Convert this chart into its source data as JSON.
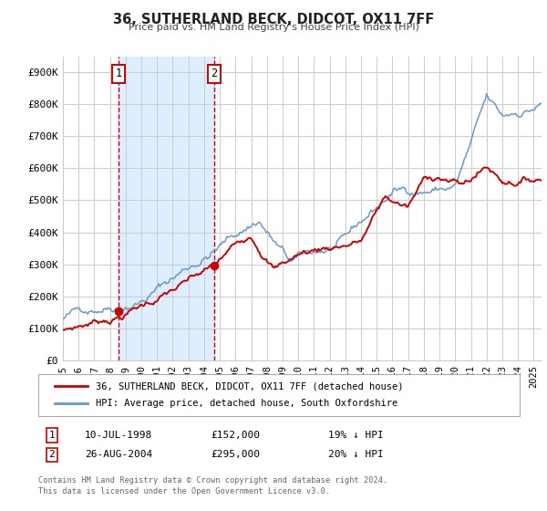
{
  "title": "36, SUTHERLAND BECK, DIDCOT, OX11 7FF",
  "subtitle": "Price paid vs. HM Land Registry's House Price Index (HPI)",
  "xlim": [
    1995.0,
    2025.5
  ],
  "ylim": [
    0,
    950000
  ],
  "yticks": [
    0,
    100000,
    200000,
    300000,
    400000,
    500000,
    600000,
    700000,
    800000,
    900000
  ],
  "ytick_labels": [
    "£0",
    "£100K",
    "£200K",
    "£300K",
    "£400K",
    "£500K",
    "£600K",
    "£700K",
    "£800K",
    "£900K"
  ],
  "xtick_years": [
    1995,
    1996,
    1997,
    1998,
    1999,
    2000,
    2001,
    2002,
    2003,
    2004,
    2005,
    2006,
    2007,
    2008,
    2009,
    2010,
    2011,
    2012,
    2013,
    2014,
    2015,
    2016,
    2017,
    2018,
    2019,
    2020,
    2021,
    2022,
    2023,
    2024,
    2025
  ],
  "red_color": "#cc0000",
  "blue_color": "#6699cc",
  "shade_color": "#ddeeff",
  "grid_color": "#cccccc",
  "purchase1_x": 1998.54,
  "purchase1_y": 152000,
  "purchase2_x": 2004.65,
  "purchase2_y": 295000,
  "legend_line1": "36, SUTHERLAND BECK, DIDCOT, OX11 7FF (detached house)",
  "legend_line2": "HPI: Average price, detached house, South Oxfordshire",
  "table_rows": [
    [
      "1",
      "10-JUL-1998",
      "£152,000",
      "19% ↓ HPI"
    ],
    [
      "2",
      "26-AUG-2004",
      "£295,000",
      "20% ↓ HPI"
    ]
  ],
  "footer1": "Contains HM Land Registry data © Crown copyright and database right 2024.",
  "footer2": "This data is licensed under the Open Government Licence v3.0."
}
